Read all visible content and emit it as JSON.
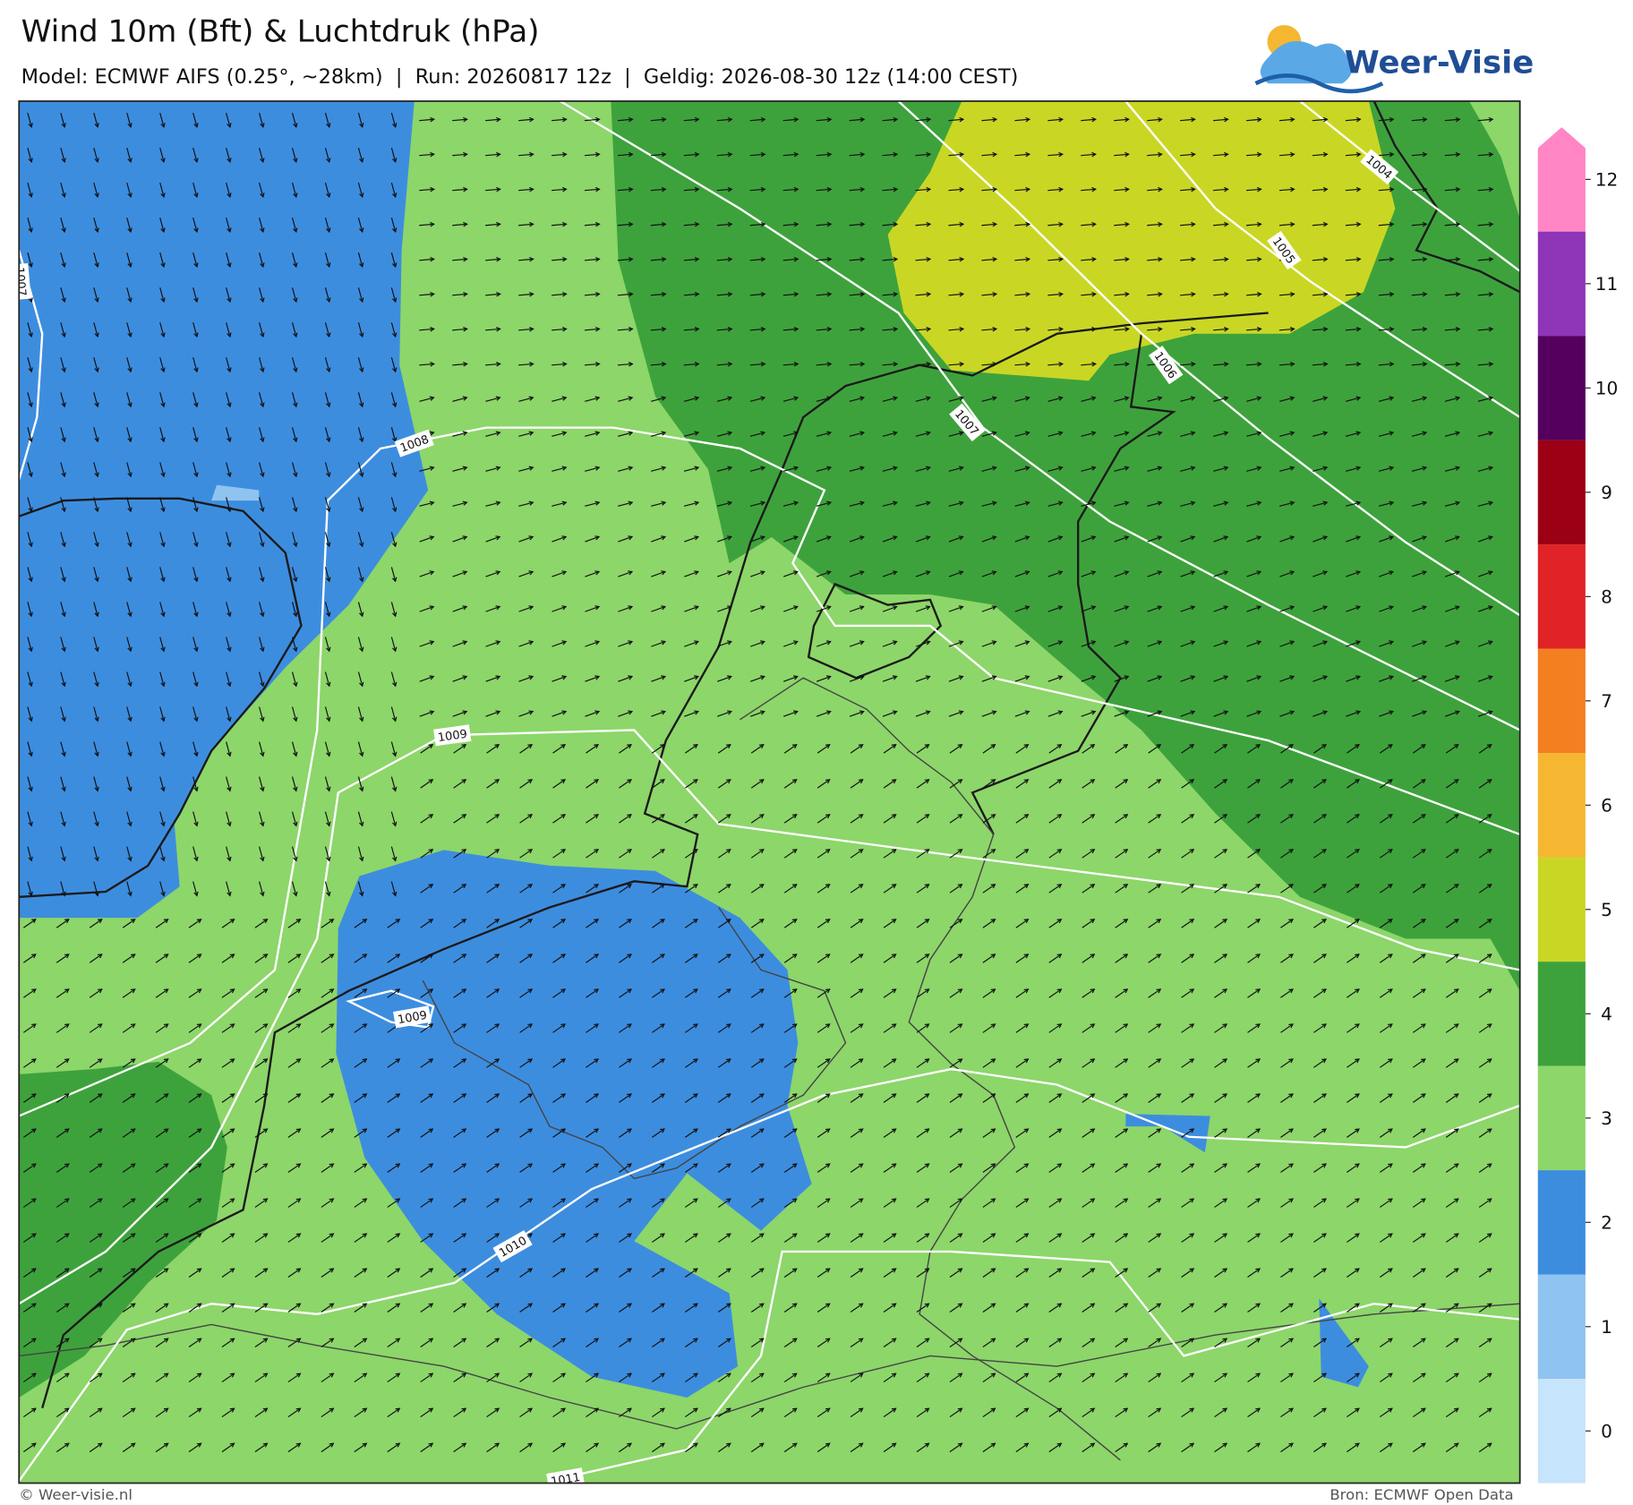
{
  "header": {
    "title": "Wind 10m (Bft) & Luchtdruk (hPa)",
    "subtitle": "Model: ECMWF AIFS (0.25°, ~28km)  |  Run: 20260817 12z  |  Geldig: 2026-08-30 12z (14:00 CEST)",
    "brand": "Weer-Visie"
  },
  "colorbar": {
    "ticks": [
      0,
      1,
      2,
      3,
      4,
      5,
      6,
      7,
      8,
      9,
      10,
      11,
      12
    ],
    "colors": [
      "#c6e4fb",
      "#8fc3f0",
      "#3d8ddf",
      "#8dd66a",
      "#3ea23c",
      "#c9d724",
      "#f5b731",
      "#f47f21",
      "#e02326",
      "#9b0014",
      "#55005e",
      "#8e35b8",
      "#ff85c4"
    ]
  },
  "isobars": [
    1004,
    1005,
    1006,
    1007,
    1007,
    1008,
    1009,
    1009,
    1010,
    1011
  ],
  "footer": {
    "left": "© Weer-visie.nl",
    "right": "Bron: ECMWF Open Data"
  }
}
